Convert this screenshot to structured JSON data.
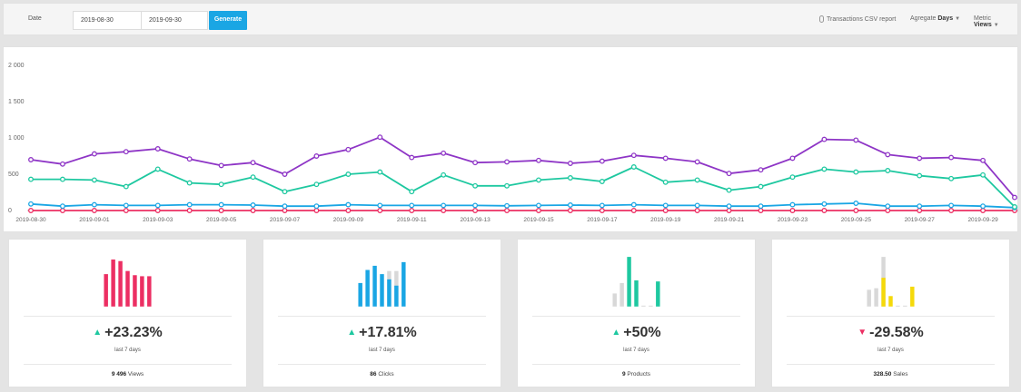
{
  "toolbar": {
    "date_label": "Date",
    "start_date": "2019-08-30",
    "end_date": "2019-09-30",
    "generate_label": "Generate",
    "csv_label": "Transactions CSV report",
    "aggregate_label": "Agregate",
    "aggregate_value": "Days",
    "metric_label": "Metric",
    "metric_value": "Views"
  },
  "chart_data": {
    "type": "line",
    "x": [
      "2019-08-30",
      "2019-08-31",
      "2019-09-01",
      "2019-09-02",
      "2019-09-03",
      "2019-09-04",
      "2019-09-05",
      "2019-09-06",
      "2019-09-07",
      "2019-09-08",
      "2019-09-09",
      "2019-09-10",
      "2019-09-11",
      "2019-09-12",
      "2019-09-13",
      "2019-09-14",
      "2019-09-15",
      "2019-09-16",
      "2019-09-17",
      "2019-09-18",
      "2019-09-19",
      "2019-09-20",
      "2019-09-21",
      "2019-09-22",
      "2019-09-23",
      "2019-09-24",
      "2019-09-25",
      "2019-09-26",
      "2019-09-27",
      "2019-09-28",
      "2019-09-29",
      "2019-09-30"
    ],
    "xticks": [
      "2019-08-30",
      "2019-09-01",
      "2019-09-03",
      "2019-09-05",
      "2019-09-07",
      "2019-09-09",
      "2019-09-11",
      "2019-09-13",
      "2019-09-15",
      "2019-09-17",
      "2019-09-19",
      "2019-09-21",
      "2019-09-23",
      "2019-09-25",
      "2019-09-27",
      "2019-09-29"
    ],
    "yticks": [
      {
        "value": 0,
        "label": "0"
      },
      {
        "value": 500,
        "label": "500"
      },
      {
        "value": 1000,
        "label": "1 000"
      },
      {
        "value": 1500,
        "label": "1 500"
      },
      {
        "value": 2000,
        "label": "2 000"
      }
    ],
    "ylim": [
      0,
      2000
    ],
    "grid": false,
    "series": [
      {
        "color": "#8e35c6",
        "values": [
          700,
          640,
          780,
          810,
          850,
          710,
          620,
          660,
          500,
          750,
          840,
          1010,
          730,
          790,
          660,
          670,
          690,
          650,
          680,
          760,
          720,
          670,
          510,
          560,
          720,
          980,
          970,
          770,
          720,
          730,
          690,
          180
        ]
      },
      {
        "color": "#1ec8a0",
        "values": [
          430,
          430,
          420,
          330,
          570,
          380,
          360,
          460,
          260,
          360,
          500,
          530,
          260,
          490,
          340,
          340,
          420,
          450,
          400,
          600,
          390,
          420,
          280,
          330,
          460,
          570,
          530,
          550,
          480,
          440,
          490,
          50
        ]
      },
      {
        "color": "#1aa6e4",
        "values": [
          90,
          60,
          80,
          70,
          70,
          80,
          80,
          75,
          60,
          60,
          80,
          70,
          70,
          70,
          70,
          65,
          70,
          75,
          70,
          80,
          70,
          70,
          60,
          60,
          80,
          90,
          100,
          60,
          60,
          70,
          60,
          40
        ]
      },
      {
        "color": "#ec2f63",
        "values": [
          0,
          0,
          0,
          0,
          0,
          0,
          0,
          0,
          0,
          0,
          0,
          0,
          0,
          0,
          0,
          0,
          0,
          0,
          0,
          0,
          0,
          0,
          0,
          0,
          0,
          0,
          0,
          0,
          0,
          0,
          0,
          0
        ]
      }
    ]
  },
  "cards": [
    {
      "key": "views",
      "color": "#ec2f63",
      "bars": [
        0.62,
        0.9,
        0.87,
        0.68,
        0.6,
        0.58,
        0.58
      ],
      "bars_gray": [
        0,
        0,
        0,
        0,
        0,
        0,
        0
      ],
      "direction": "up",
      "arrow": "▲",
      "change": "+23.23%",
      "period": "last 7 days",
      "footer_value": "9 496",
      "footer_label": "Views"
    },
    {
      "key": "clicks",
      "color": "#1aa6e4",
      "bars": [
        0.45,
        0.7,
        0.78,
        0.62,
        0.52,
        0.4,
        0.85
      ],
      "bars_gray": [
        0,
        0,
        0,
        0,
        0.68,
        0.68,
        0
      ],
      "direction": "up",
      "arrow": "▲",
      "change": "+17.81%",
      "period": "last 7 days",
      "footer_value": "86",
      "footer_label": "Clicks"
    },
    {
      "key": "products",
      "color": "#1ec8a0",
      "bars": [
        0,
        0,
        0.95,
        0.5,
        0,
        0,
        0.48
      ],
      "bars_gray": [
        0.25,
        0.45,
        0,
        0,
        0.01,
        0.01,
        0
      ],
      "direction": "up",
      "arrow": "▲",
      "change": "+50%",
      "period": "last 7 days",
      "footer_value": "9",
      "footer_label": "Products"
    },
    {
      "key": "sales",
      "color": "#f5d90a",
      "bars": [
        0,
        0,
        0.55,
        0.2,
        0,
        0,
        0.38
      ],
      "bars_gray": [
        0.32,
        0.35,
        0.95,
        0,
        0.01,
        0.01,
        0
      ],
      "direction": "down",
      "arrow": "▼",
      "change": "-29.58%",
      "period": "last 7 days",
      "footer_value": "328.50",
      "footer_label": "Sales"
    }
  ]
}
